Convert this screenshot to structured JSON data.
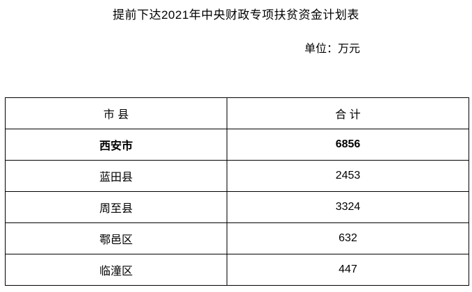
{
  "page": {
    "title": "提前下达2021年中央财政专项扶贫资金计划表",
    "unit_label": "单位：万元"
  },
  "table": {
    "headers": [
      "市 县",
      "合 计"
    ],
    "rows": [
      {
        "name": "西安市",
        "total": "6856",
        "emphasis": true
      },
      {
        "name": "蓝田县",
        "total": "2453",
        "emphasis": false
      },
      {
        "name": "周至县",
        "total": "3324",
        "emphasis": false
      },
      {
        "name": "鄠邑区",
        "total": "632",
        "emphasis": false
      },
      {
        "name": "临潼区",
        "total": "447",
        "emphasis": false
      }
    ]
  }
}
